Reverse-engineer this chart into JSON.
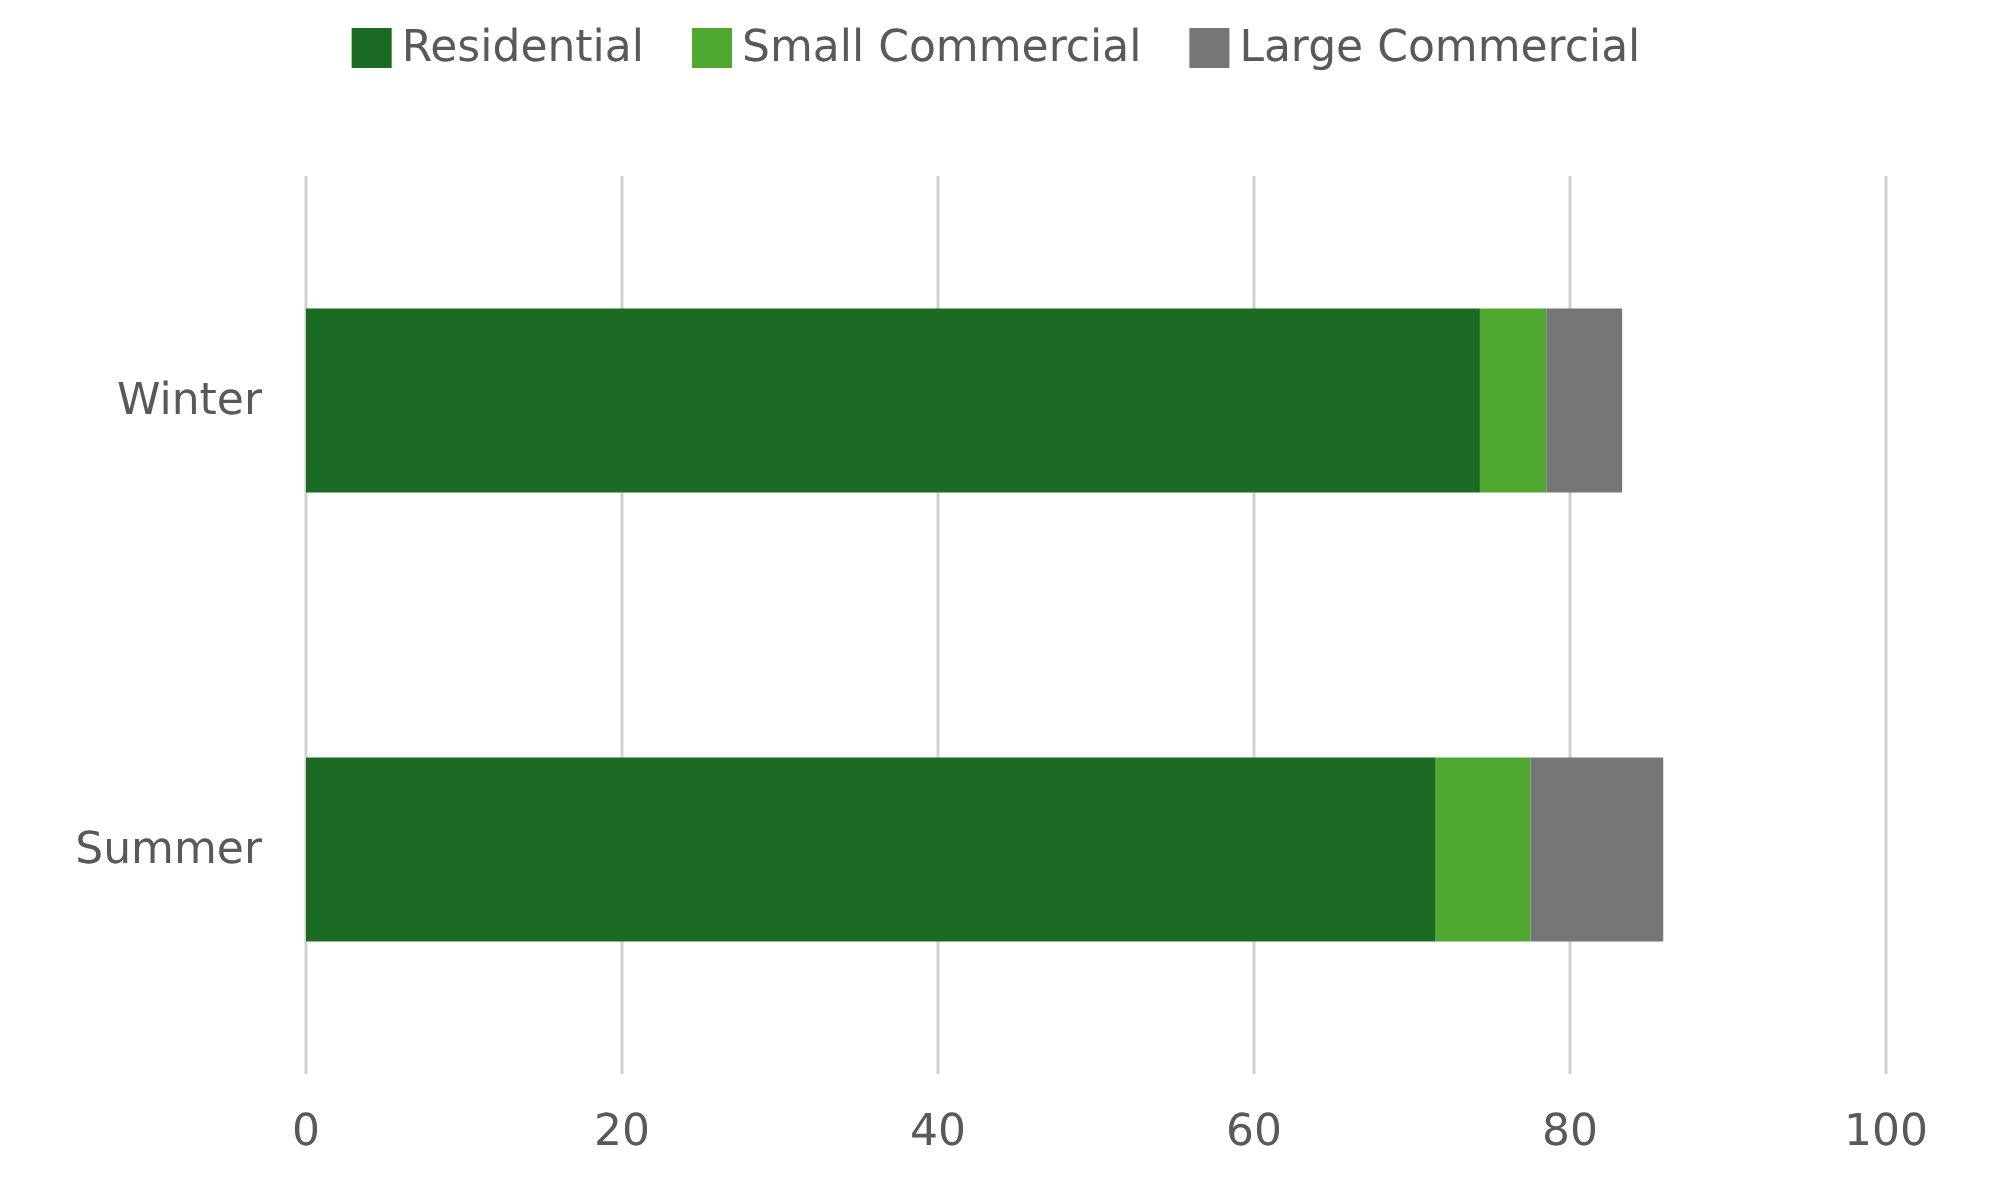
{
  "chart_data": {
    "type": "bar",
    "orientation": "horizontal",
    "stacked": true,
    "categories": [
      "Winter",
      "Summer"
    ],
    "series": [
      {
        "name": "Residential",
        "color": "#1b6b23",
        "values": [
          74.3,
          71.5
        ]
      },
      {
        "name": "Small Commercial",
        "color": "#4ea72e",
        "values": [
          4.2,
          6.0
        ]
      },
      {
        "name": "Large Commercial",
        "color": "#767676",
        "values": [
          4.8,
          8.4
        ]
      }
    ],
    "xlim": [
      0,
      100
    ],
    "xticks": [
      0,
      20,
      40,
      60,
      80,
      100
    ],
    "grid": "x",
    "legend": "top"
  }
}
